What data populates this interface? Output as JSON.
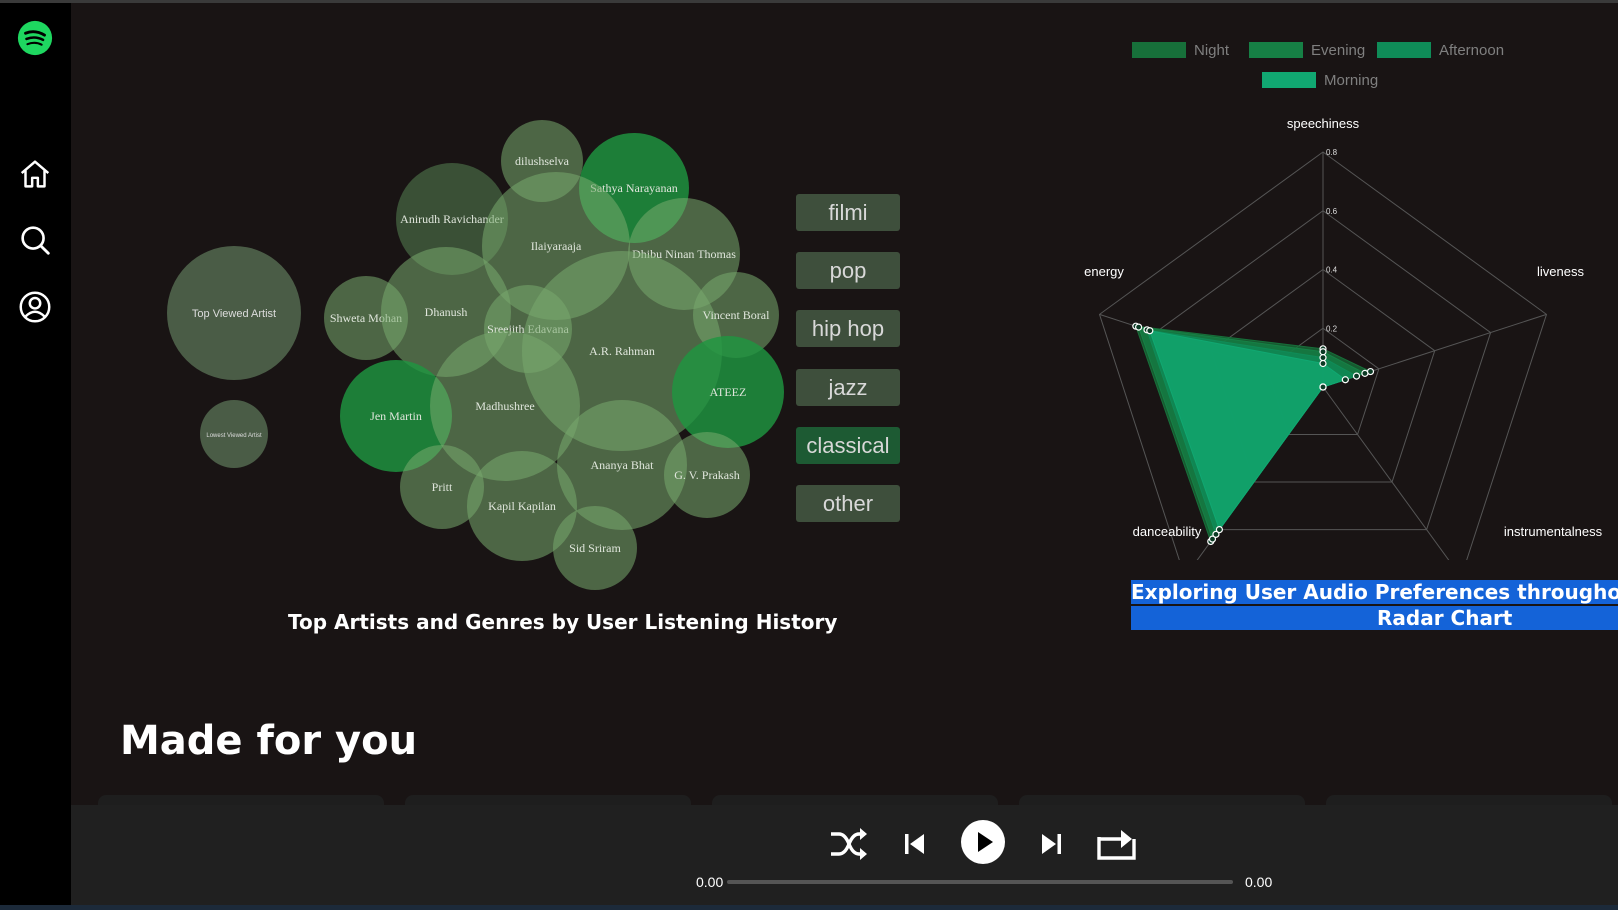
{
  "sidebar": {
    "items": [
      {
        "icon": "spotify-logo-icon"
      },
      {
        "icon": "home-icon"
      },
      {
        "icon": "search-icon"
      },
      {
        "icon": "profile-icon"
      }
    ]
  },
  "colors": {
    "background": "#191414",
    "sidebar": "#000000",
    "brand_green": "#1ed760",
    "bubble_light": "#5c7a54",
    "bubble_dark": "#1b8a3c",
    "radar_fill": "#0fbf7a"
  },
  "bubble_chart": {
    "title": "Top Artists and Genres by User Listening History",
    "legend": {
      "top": "Top Viewed Artist",
      "lowest": "Lowest Viewed Artist"
    },
    "artists": [
      {
        "name": "dilushselva",
        "shade": "light"
      },
      {
        "name": "Sathya Narayanan",
        "shade": "dark"
      },
      {
        "name": "Anirudh Ravichander",
        "shade": "mid"
      },
      {
        "name": "Ilaiyaraaja",
        "shade": "light"
      },
      {
        "name": "Dhibu Ninan Thomas",
        "shade": "light"
      },
      {
        "name": "Shweta Mohan",
        "shade": "light"
      },
      {
        "name": "Dhanush",
        "shade": "light"
      },
      {
        "name": "Sreejith Edavana",
        "shade": "light"
      },
      {
        "name": "A.R. Rahman",
        "shade": "light"
      },
      {
        "name": "Vincent Boral",
        "shade": "light"
      },
      {
        "name": "ATEEZ",
        "shade": "dark"
      },
      {
        "name": "Jen Martin",
        "shade": "dark"
      },
      {
        "name": "Madhushree",
        "shade": "light"
      },
      {
        "name": "Ananya Bhat",
        "shade": "light"
      },
      {
        "name": "G. V. Prakash",
        "shade": "light"
      },
      {
        "name": "Pritt",
        "shade": "light"
      },
      {
        "name": "Kapil Kapilan",
        "shade": "light"
      },
      {
        "name": "Sid Sriram",
        "shade": "light"
      }
    ]
  },
  "genres": [
    {
      "label": "filmi",
      "active": false
    },
    {
      "label": "pop",
      "active": false
    },
    {
      "label": "hip hop",
      "active": false
    },
    {
      "label": "jazz",
      "active": false
    },
    {
      "label": "classical",
      "active": true
    },
    {
      "label": "other",
      "active": false
    }
  ],
  "chart_data": {
    "type": "radar",
    "title_line1": "Exploring User Audio Preferences throughout th",
    "title_line2": "Radar Chart",
    "axes": [
      "speechiness",
      "liveness",
      "instrumentalness",
      "danceability",
      "energy"
    ],
    "ticks": [
      "0.2",
      "0.4",
      "0.6",
      "0.8"
    ],
    "rmax": 0.8,
    "legend_position": "top",
    "series": [
      {
        "name": "Night",
        "color": "#17703a",
        "values": [
          0.13,
          0.17,
          0.0,
          0.65,
          0.67
        ]
      },
      {
        "name": "Evening",
        "color": "#168045",
        "values": [
          0.12,
          0.15,
          0.0,
          0.64,
          0.66
        ]
      },
      {
        "name": "Afternoon",
        "color": "#0f8c58",
        "values": [
          0.1,
          0.12,
          0.0,
          0.62,
          0.63
        ]
      },
      {
        "name": "Morning",
        "color": "#11a872",
        "values": [
          0.08,
          0.08,
          0.0,
          0.6,
          0.62
        ]
      }
    ]
  },
  "section": {
    "title": "Made for you"
  },
  "player": {
    "current_time": "0.00",
    "total_time": "0.00",
    "progress": 0
  }
}
